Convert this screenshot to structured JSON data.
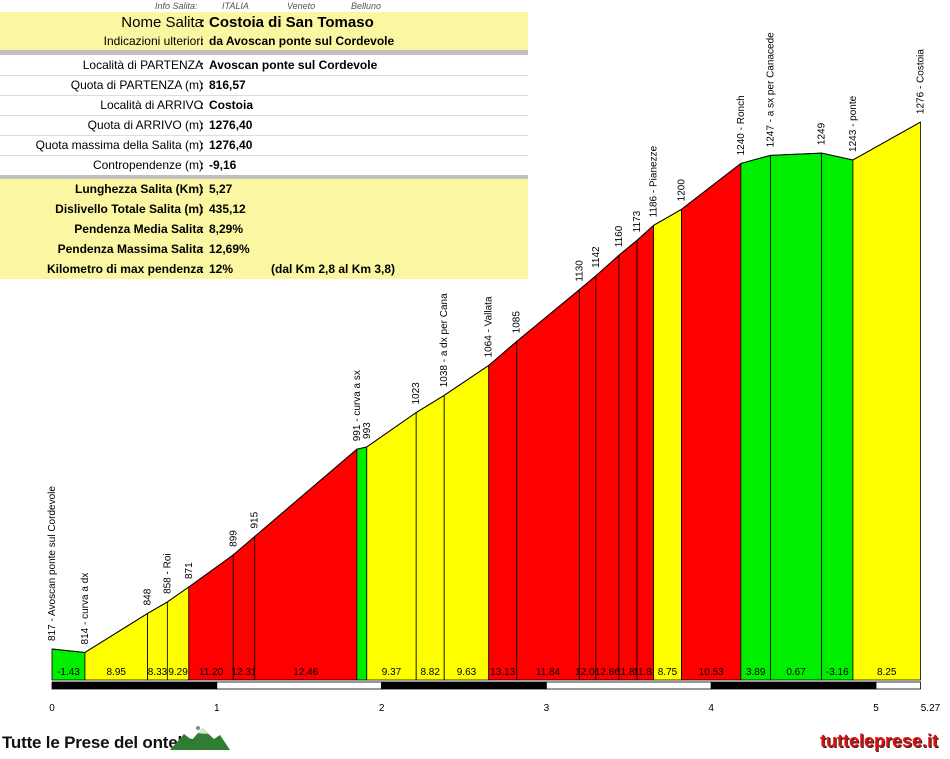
{
  "info_top": {
    "label": "Info Salita:",
    "country": "ITALIA",
    "region": "Veneto",
    "province": "Belluno"
  },
  "info": {
    "nome_label": "Nome Salita",
    "nome_value": "Costoia di San Tomaso",
    "indicazioni_label": "Indicazioni ulteriori",
    "indicazioni_value": "da Avoscan ponte sul Cordevole",
    "loc_partenza_label": "Località di PARTENZA",
    "loc_partenza_value": "Avoscan ponte sul Cordevole",
    "quota_partenza_label": "Quota di PARTENZA (m)",
    "quota_partenza_value": "816,57",
    "loc_arrivo_label": "Località di ARRIVO",
    "loc_arrivo_value": "Costoia",
    "quota_arrivo_label": "Quota di ARRIVO (m)",
    "quota_arrivo_value": "1276,40",
    "quota_max_label": "Quota massima della Salita (m)",
    "quota_max_value": "1276,40",
    "contro_label": "Contropendenze (m)",
    "contro_value": "-9,16",
    "lunghezza_label": "Lunghezza Salita (Km)",
    "lunghezza_value": "5,27",
    "dislivello_label": "Dislivello Totale Salita (m)",
    "dislivello_value": "435,12",
    "pend_media_label": "Pendenza Media Salita",
    "pend_media_value": "8,29%",
    "pend_max_label": "Pendenza Massima Salita",
    "pend_max_value": "12,69%",
    "km_max_label": "Kilometro di max pendenza",
    "km_max_value": "12%",
    "km_max_note": "(dal Km 2,8 al Km 3,8)",
    "separator": ":"
  },
  "chart_data": {
    "type": "area",
    "title": "",
    "xlabel": "",
    "ylabel": "",
    "x_ticks": [
      "0",
      "1",
      "2",
      "3",
      "4",
      "5",
      "5.27"
    ],
    "colors": {
      "green": "#00ee00",
      "yellow": "#ffff00",
      "red": "#ff0000",
      "scale_black": "#000000"
    },
    "points": [
      {
        "x": 0.0,
        "y": 817,
        "label": "817 - Avoscan ponte sul Cordevole"
      },
      {
        "x": 0.2,
        "y": 814,
        "label": "814 - curva a dx"
      },
      {
        "x": 0.58,
        "y": 848,
        "label": "848"
      },
      {
        "x": 0.7,
        "y": 858,
        "label": "858 - Roi"
      },
      {
        "x": 0.83,
        "y": 871,
        "label": "871"
      },
      {
        "x": 1.1,
        "y": 899,
        "label": "899"
      },
      {
        "x": 1.23,
        "y": 915,
        "label": "915"
      },
      {
        "x": 1.85,
        "y": 991,
        "label": "991 - curva a sx"
      },
      {
        "x": 1.91,
        "y": 993,
        "label": "993"
      },
      {
        "x": 2.21,
        "y": 1023,
        "label": "1023"
      },
      {
        "x": 2.38,
        "y": 1038,
        "label": "1038 - a dx per Cana"
      },
      {
        "x": 2.65,
        "y": 1064,
        "label": "1064 - Vallata"
      },
      {
        "x": 2.82,
        "y": 1085,
        "label": "1085"
      },
      {
        "x": 3.2,
        "y": 1130,
        "label": "1130"
      },
      {
        "x": 3.3,
        "y": 1142,
        "label": "1142"
      },
      {
        "x": 3.44,
        "y": 1160,
        "label": "1160"
      },
      {
        "x": 3.55,
        "y": 1173,
        "label": "1173"
      },
      {
        "x": 3.65,
        "y": 1186,
        "label": "1186 - Pianezze"
      },
      {
        "x": 3.82,
        "y": 1200,
        "label": "1200"
      },
      {
        "x": 4.18,
        "y": 1240,
        "label": "1240 - Ronch"
      },
      {
        "x": 4.36,
        "y": 1247,
        "label": "1247 - a sx per Canacede"
      },
      {
        "x": 4.67,
        "y": 1249,
        "label": "1249"
      },
      {
        "x": 4.86,
        "y": 1243,
        "label": "1243 - ponte"
      },
      {
        "x": 5.27,
        "y": 1276,
        "label": "1276 - Costoia"
      }
    ],
    "segments": [
      {
        "grade": "-1.43",
        "color": "green"
      },
      {
        "grade": "8.95",
        "color": "yellow"
      },
      {
        "grade": "8.33",
        "color": "yellow"
      },
      {
        "grade": "9.29",
        "color": "yellow"
      },
      {
        "grade": "11.20",
        "color": "red"
      },
      {
        "grade": "12.31",
        "color": "red"
      },
      {
        "grade": "12.46",
        "color": "red"
      },
      {
        "grade": "",
        "color": "green"
      },
      {
        "grade": "9.37",
        "color": "yellow"
      },
      {
        "grade": "8.82",
        "color": "yellow"
      },
      {
        "grade": "9.63",
        "color": "yellow"
      },
      {
        "grade": "13.13",
        "color": "red"
      },
      {
        "grade": "11.84",
        "color": "red"
      },
      {
        "grade": "12.00",
        "color": "red"
      },
      {
        "grade": "12.86",
        "color": "red"
      },
      {
        "grade": "11.82",
        "color": "red"
      },
      {
        "grade": "11.82",
        "color": "red"
      },
      {
        "grade": "8.75",
        "color": "yellow"
      },
      {
        "grade": "10.53",
        "color": "red"
      },
      {
        "grade": "3.89",
        "color": "green"
      },
      {
        "grade": "0.67",
        "color": "green"
      },
      {
        "grade": "-3.16",
        "color": "green"
      },
      {
        "grade": "8.25",
        "color": "yellow"
      }
    ]
  },
  "footer": {
    "brand": "Tutte le Prese del  ontello",
    "site": "tutteleprese.it"
  }
}
